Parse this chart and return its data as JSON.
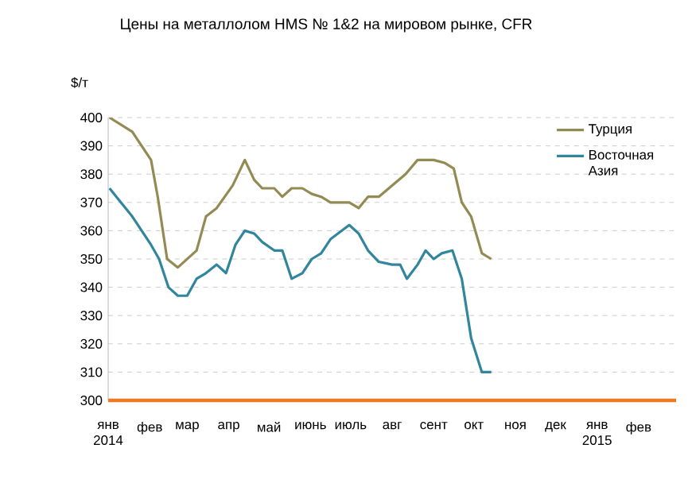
{
  "chart_data": {
    "type": "line",
    "title": "Цены на металлолом HMS № 1&2 на мировом рынке, CFR",
    "ylabel": "$/т",
    "xlim": [
      "2014-01-01",
      "2015-03-01"
    ],
    "xticks": [
      {
        "value": "2014-01-01",
        "label": "янв 2014"
      },
      {
        "value": "2014-02-01",
        "label": "фев"
      },
      {
        "value": "2014-03-01",
        "label": "мар"
      },
      {
        "value": "2014-04-01",
        "label": "апр"
      },
      {
        "value": "2014-05-01",
        "label": "май"
      },
      {
        "value": "2014-06-01",
        "label": "июнь"
      },
      {
        "value": "2014-07-01",
        "label": "июль"
      },
      {
        "value": "2014-08-01",
        "label": "авг"
      },
      {
        "value": "2014-09-01",
        "label": "сент"
      },
      {
        "value": "2014-10-01",
        "label": "окт"
      },
      {
        "value": "2014-11-01",
        "label": "ноя"
      },
      {
        "value": "2014-12-01",
        "label": "дек"
      },
      {
        "value": "2015-01-01",
        "label": "янв 2015"
      },
      {
        "value": "2015-02-01",
        "label": "фев"
      }
    ],
    "ylim": [
      300,
      400
    ],
    "yticks": [
      300,
      310,
      320,
      330,
      340,
      350,
      360,
      370,
      380,
      390,
      400
    ],
    "grid": "y",
    "legend": "top right",
    "marker": "none",
    "line_style": "solid",
    "series": [
      {
        "name": "Турция",
        "color": "#948a54",
        "x": [
          "2014-01-02",
          "2014-01-19",
          "2014-02-02",
          "2014-02-07",
          "2014-02-14",
          "2014-02-22",
          "2014-03-08",
          "2014-03-15",
          "2014-03-23",
          "2014-04-04",
          "2014-04-13",
          "2014-04-20",
          "2014-04-26",
          "2014-05-05",
          "2014-05-11",
          "2014-05-18",
          "2014-05-26",
          "2014-06-02",
          "2014-06-09",
          "2014-06-16",
          "2014-06-30",
          "2014-07-07",
          "2014-07-14",
          "2014-07-22",
          "2014-08-01",
          "2014-08-11",
          "2014-08-20",
          "2014-09-01",
          "2014-09-09",
          "2014-09-16",
          "2014-09-22",
          "2014-09-29",
          "2014-10-07",
          "2014-10-14"
        ],
        "values": [
          400,
          395,
          385,
          372,
          350,
          347,
          353,
          365,
          368,
          376,
          385,
          378,
          375,
          375,
          372,
          375,
          375,
          373,
          372,
          370,
          370,
          368,
          372,
          372,
          376,
          380,
          385,
          385,
          384,
          382,
          370,
          365,
          352,
          350
        ]
      },
      {
        "name": "Восточная Азия",
        "color": "#31859c",
        "x": [
          "2014-01-02",
          "2014-01-19",
          "2014-02-02",
          "2014-02-08",
          "2014-02-15",
          "2014-02-22",
          "2014-03-01",
          "2014-03-08",
          "2014-03-15",
          "2014-03-23",
          "2014-03-30",
          "2014-04-06",
          "2014-04-13",
          "2014-04-20",
          "2014-04-26",
          "2014-05-05",
          "2014-05-11",
          "2014-05-18",
          "2014-05-26",
          "2014-06-02",
          "2014-06-09",
          "2014-06-16",
          "2014-06-30",
          "2014-07-07",
          "2014-07-14",
          "2014-07-22",
          "2014-08-01",
          "2014-08-07",
          "2014-08-12",
          "2014-08-20",
          "2014-08-26",
          "2014-09-01",
          "2014-09-07",
          "2014-09-15",
          "2014-09-22",
          "2014-09-29",
          "2014-10-07",
          "2014-10-14"
        ],
        "values": [
          375,
          365,
          355,
          350,
          340,
          337,
          337,
          343,
          345,
          348,
          345,
          355,
          360,
          359,
          356,
          353,
          353,
          343,
          345,
          350,
          352,
          357,
          362,
          359,
          353,
          349,
          348,
          348,
          343,
          348,
          353,
          350,
          352,
          353,
          343,
          322,
          310,
          310
        ]
      }
    ]
  }
}
